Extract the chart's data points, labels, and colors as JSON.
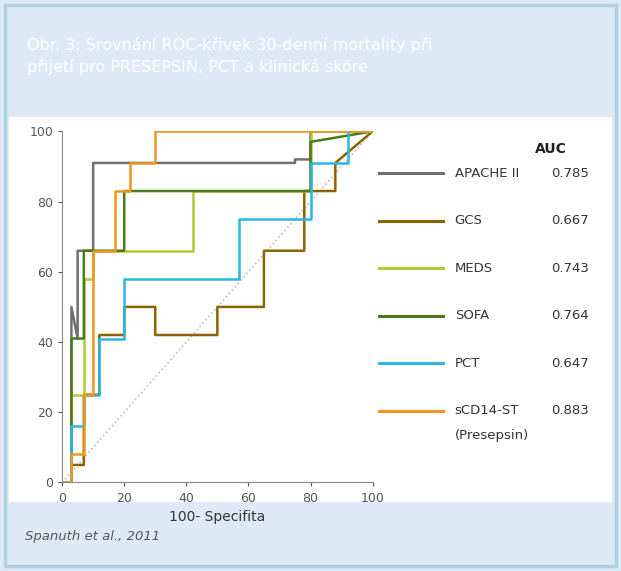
{
  "title": "Obr. 3: Srovnání ROC-křivek 30-denní mortality při\npřijetí pro PRESEPSIN, PCT a klinická skóre",
  "xlabel": "100- Specifita",
  "footer": "Spanuth et al., 2011",
  "title_bg": "#7bafd4",
  "border_color": "#b0cfe0",
  "outer_bg": "#ddeaf5",
  "inner_bg": "#ffffff",
  "diag_color": "#bbbbbb",
  "curves": {
    "APACHE II": {
      "color": "#707070",
      "auc": "0.785",
      "x": [
        0,
        3,
        3,
        5,
        5,
        10,
        10,
        75,
        75,
        80,
        80,
        100
      ],
      "y": [
        0,
        0,
        50,
        41,
        66,
        66,
        91,
        91,
        92,
        92,
        100,
        100
      ]
    },
    "GCS": {
      "color": "#8B6400",
      "auc": "0.667",
      "x": [
        0,
        3,
        3,
        7,
        7,
        12,
        12,
        20,
        20,
        30,
        30,
        50,
        50,
        65,
        65,
        78,
        78,
        88,
        88,
        100
      ],
      "y": [
        0,
        0,
        5,
        5,
        25,
        25,
        42,
        42,
        50,
        50,
        42,
        42,
        50,
        50,
        66,
        66,
        83,
        83,
        91,
        100
      ]
    },
    "MEDS": {
      "color": "#b5c832",
      "auc": "0.743",
      "x": [
        0,
        3,
        3,
        7,
        7,
        10,
        10,
        20,
        20,
        42,
        42,
        62,
        62,
        80,
        80,
        100
      ],
      "y": [
        0,
        0,
        25,
        25,
        58,
        58,
        66,
        66,
        66,
        66,
        83,
        83,
        83,
        83,
        100,
        100
      ]
    },
    "SOFA": {
      "color": "#4a7a1a",
      "auc": "0.764",
      "x": [
        0,
        3,
        3,
        7,
        7,
        10,
        10,
        20,
        20,
        62,
        62,
        80,
        80,
        100
      ],
      "y": [
        0,
        0,
        41,
        41,
        66,
        66,
        66,
        66,
        83,
        83,
        83,
        83,
        97,
        100
      ]
    },
    "PCT": {
      "color": "#29b8e0",
      "auc": "0.647",
      "x": [
        0,
        3,
        3,
        7,
        7,
        12,
        12,
        20,
        20,
        57,
        57,
        65,
        65,
        80,
        80,
        92,
        92,
        100
      ],
      "y": [
        0,
        0,
        16,
        16,
        25,
        25,
        41,
        41,
        58,
        58,
        75,
        75,
        75,
        75,
        91,
        91,
        100,
        100
      ]
    },
    "sCD14-ST": {
      "color": "#f0971e",
      "auc": "0.883",
      "label2": "(Presepsin)",
      "x": [
        0,
        3,
        3,
        7,
        7,
        10,
        10,
        17,
        17,
        22,
        22,
        30,
        30,
        100
      ],
      "y": [
        0,
        0,
        8,
        8,
        25,
        25,
        66,
        66,
        83,
        83,
        91,
        91,
        100,
        100
      ]
    }
  },
  "legend_order": [
    "APACHE II",
    "GCS",
    "MEDS",
    "SOFA",
    "PCT",
    "sCD14-ST"
  ],
  "xlim": [
    0,
    100
  ],
  "ylim": [
    0,
    100
  ],
  "xticks": [
    0,
    20,
    40,
    60,
    80,
    100
  ],
  "yticks": [
    0,
    20,
    40,
    60,
    80,
    100
  ]
}
